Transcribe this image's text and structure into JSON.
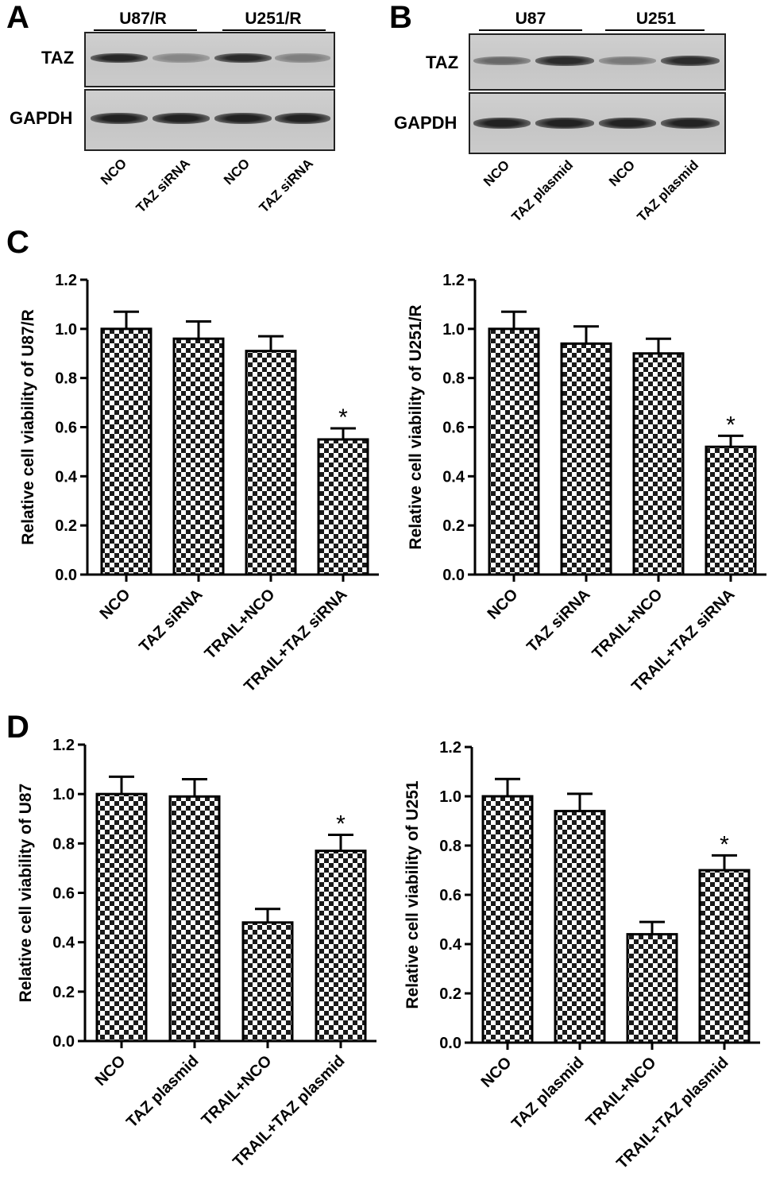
{
  "panels": {
    "A": "A",
    "B": "B",
    "C": "C",
    "D": "D"
  },
  "blotA": {
    "groups": [
      "U87/R",
      "U251/R"
    ],
    "rows": [
      "TAZ",
      "GAPDH"
    ],
    "lanes": [
      "NCO",
      "TAZ siRNA",
      "NCO",
      "TAZ siRNA"
    ],
    "taz_intensity": [
      0.92,
      0.38,
      0.9,
      0.42
    ],
    "gapdh_intensity": [
      0.95,
      0.95,
      0.95,
      0.95
    ]
  },
  "blotB": {
    "groups": [
      "U87",
      "U251"
    ],
    "rows": [
      "TAZ",
      "GAPDH"
    ],
    "lanes": [
      "NCO",
      "TAZ plasmid",
      "NCO",
      "TAZ plasmid"
    ],
    "taz_intensity": [
      0.55,
      0.9,
      0.45,
      0.9
    ],
    "gapdh_intensity": [
      0.95,
      0.95,
      0.95,
      0.95
    ]
  },
  "chart_data": [
    {
      "id": "C-left",
      "type": "bar",
      "ylabel": "Relative cell viability of U87/R",
      "categories": [
        "NCO",
        "TAZ siRNA",
        "TRAIL+NCO",
        "TRAIL+TAZ siRNA"
      ],
      "values": [
        1.0,
        0.96,
        0.91,
        0.55
      ],
      "errors": [
        0.07,
        0.07,
        0.06,
        0.045
      ],
      "annotations": [
        "",
        "",
        "",
        "*"
      ],
      "ylim": [
        0,
        1.2
      ],
      "yticks": [
        "0.0",
        "0.2",
        "0.4",
        "0.6",
        "0.8",
        "1.0",
        "1.2"
      ]
    },
    {
      "id": "C-right",
      "type": "bar",
      "ylabel": "Relative cell viability of U251/R",
      "categories": [
        "NCO",
        "TAZ siRNA",
        "TRAIL+NCO",
        "TRAIL+TAZ siRNA"
      ],
      "values": [
        1.0,
        0.94,
        0.9,
        0.52
      ],
      "errors": [
        0.07,
        0.07,
        0.06,
        0.045
      ],
      "annotations": [
        "",
        "",
        "",
        "*"
      ],
      "ylim": [
        0,
        1.2
      ],
      "yticks": [
        "0.0",
        "0.2",
        "0.4",
        "0.6",
        "0.8",
        "1.0",
        "1.2"
      ]
    },
    {
      "id": "D-left",
      "type": "bar",
      "ylabel": "Relative cell viability of U87",
      "categories": [
        "NCO",
        "TAZ plasmid",
        "TRAIL+NCO",
        "TRAIL+TAZ plasmid"
      ],
      "values": [
        1.0,
        0.99,
        0.48,
        0.77
      ],
      "errors": [
        0.07,
        0.07,
        0.055,
        0.065
      ],
      "annotations": [
        "",
        "",
        "",
        "*"
      ],
      "ylim": [
        0,
        1.2
      ],
      "yticks": [
        "0.0",
        "0.2",
        "0.4",
        "0.6",
        "0.8",
        "1.0",
        "1.2"
      ]
    },
    {
      "id": "D-right",
      "type": "bar",
      "ylabel": "Relative cell viability of U251",
      "categories": [
        "NCO",
        "TAZ plasmid",
        "TRAIL+NCO",
        "TRAIL+TAZ plasmid"
      ],
      "values": [
        1.0,
        0.94,
        0.44,
        0.7
      ],
      "errors": [
        0.07,
        0.07,
        0.05,
        0.06
      ],
      "annotations": [
        "",
        "",
        "",
        "*"
      ],
      "ylim": [
        0,
        1.2
      ],
      "yticks": [
        "0.0",
        "0.2",
        "0.4",
        "0.6",
        "0.8",
        "1.0",
        "1.2"
      ]
    }
  ]
}
